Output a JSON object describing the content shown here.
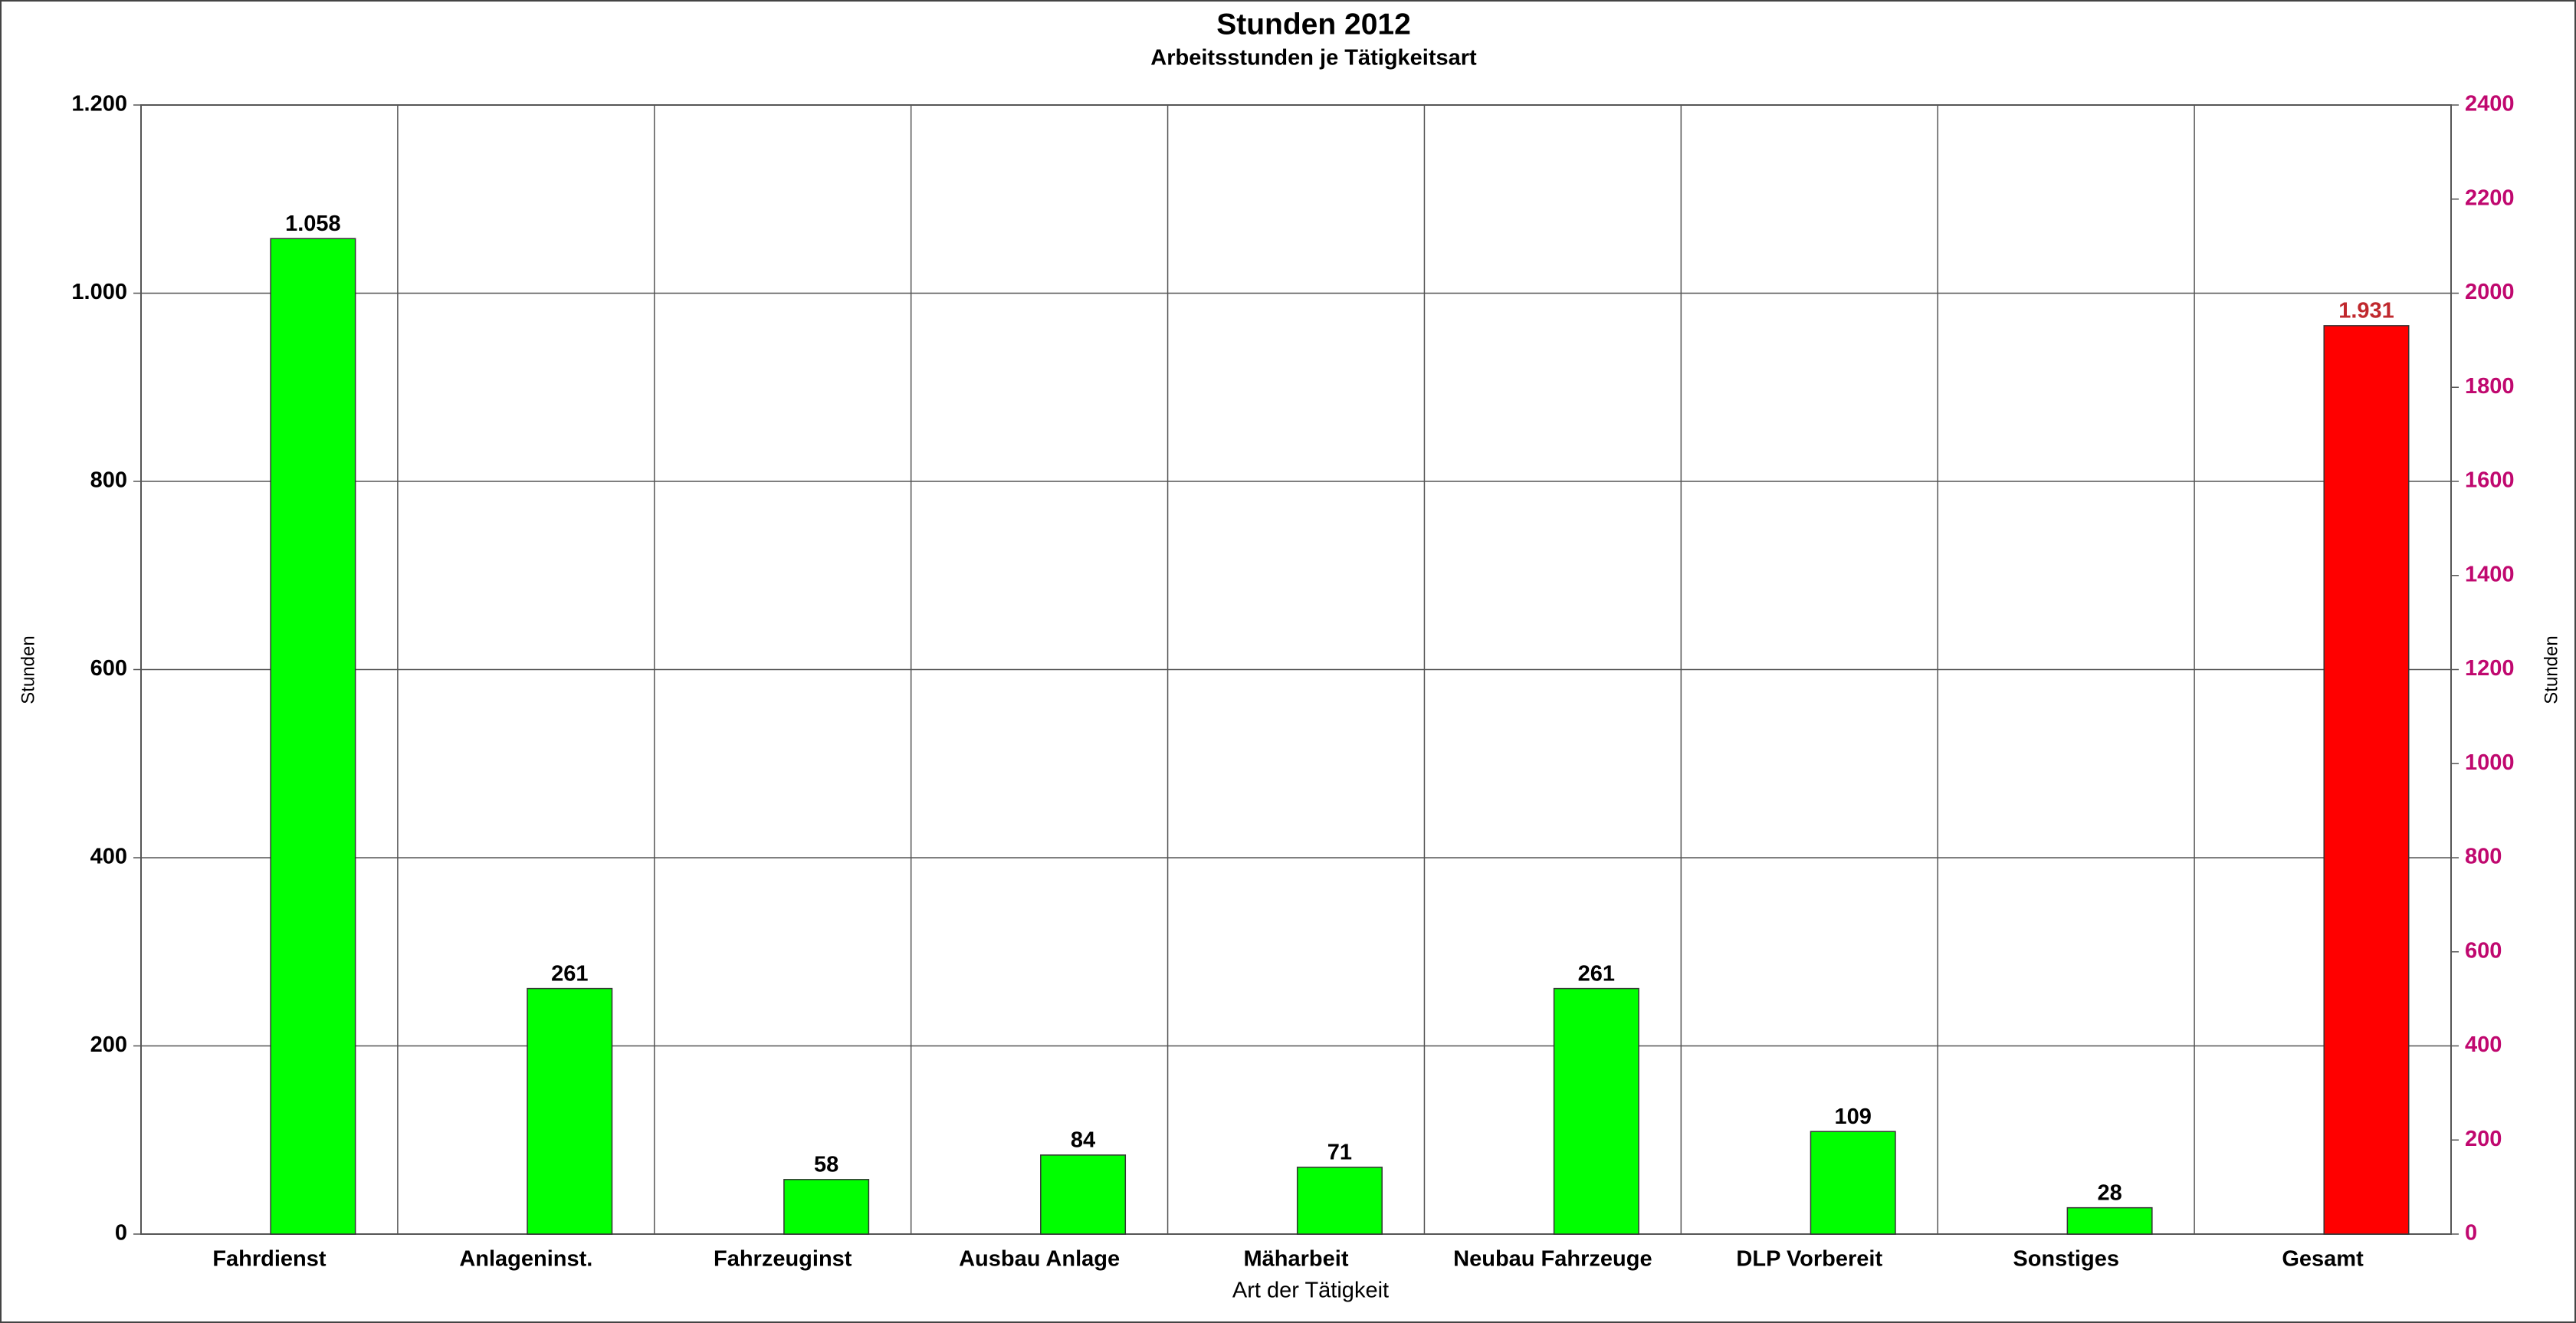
{
  "chart_data": {
    "type": "bar",
    "title": "Stunden 2012",
    "subtitle": "Arbeitsstunden je Tätigkeitsart",
    "x_label": "Art der Tätigkeit",
    "y_label": "Stunden",
    "y2_label": "Stunden",
    "categories": [
      "Fahrdienst",
      "Anlageninst.",
      "Fahrzeuginst",
      "Ausbau Anlage",
      "Mäharbeit",
      "Neubau Fahrzeuge",
      "DLP Vorbereit",
      "Sonstiges",
      "Gesamt"
    ],
    "series": [
      {
        "color": "#00ff00",
        "values": [
          1058,
          261,
          58,
          84,
          71,
          261,
          109,
          28,
          null
        ],
        "value_labels": [
          "1.058",
          "261",
          "58",
          "84",
          "71",
          "261",
          "109",
          "28",
          null
        ],
        "label_color": "#000000"
      },
      {
        "color": "#ff0000",
        "axis": "y2",
        "values": [
          null,
          null,
          null,
          null,
          null,
          null,
          null,
          null,
          1931
        ],
        "value_labels": [
          null,
          null,
          null,
          null,
          null,
          null,
          null,
          null,
          "1.931"
        ],
        "label_color": "#c0282d"
      }
    ],
    "ylim": [
      0,
      1200
    ],
    "yticks": [
      0,
      200,
      400,
      600,
      800,
      {
        "value": 1000,
        "label": "1.000"
      },
      {
        "value": 1200,
        "label": "1.200"
      }
    ],
    "y2lim": [
      0,
      2400
    ],
    "y2ticks": [
      0,
      200,
      400,
      600,
      800,
      1000,
      1200,
      1400,
      1600,
      1800,
      2000,
      2200,
      2400
    ],
    "y2_tick_color": "#c0086f",
    "grid": true
  }
}
